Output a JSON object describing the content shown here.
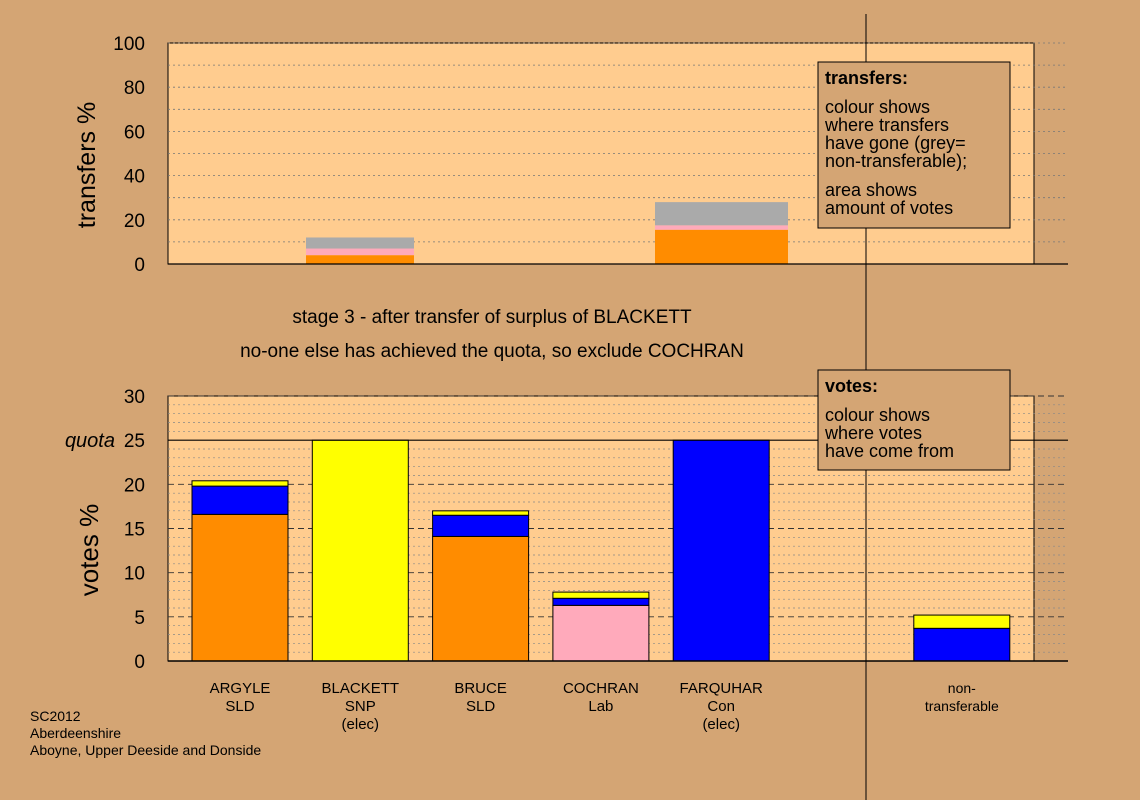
{
  "colors": {
    "background": "#d4a574",
    "plot_background": "#ffcc8f",
    "SLD": "#ff8c00",
    "SNP": "#ffff00",
    "Con": "#0000ff",
    "Lab": "#ffaabb",
    "non_transferable": "#aaaaaa"
  },
  "headline": {
    "line1": "stage 3 - after transfer of surplus of BLACKETT",
    "line2": "no-one else has achieved the quota, so exclude COCHRAN"
  },
  "footer": {
    "line1": "SC2012",
    "line2": "Aberdeenshire",
    "line3": "Aboyne, Upper Deeside and Donside"
  },
  "transfers_box": {
    "title": "transfers:",
    "line1": "colour shows",
    "line2": "where transfers",
    "line3": "have gone (grey=",
    "line4": "non-transferable);",
    "line5": "area shows",
    "line6": "amount of votes"
  },
  "votes_box": {
    "title": "votes:",
    "line1": "colour shows",
    "line2": "where votes",
    "line3": "have come from"
  },
  "quota_label": "quota",
  "chart_data": [
    {
      "type": "bar",
      "ylabel": "transfers %",
      "ylim": [
        0,
        100
      ],
      "yticks": [
        0,
        20,
        40,
        60,
        80,
        100
      ],
      "grid": true,
      "bars": [
        {
          "segments": [
            {
              "color": "SLD",
              "value": 4
            },
            {
              "color": "Lab",
              "value": 3
            },
            {
              "color": "non_transferable",
              "value": 5
            }
          ]
        },
        {
          "segments": [
            {
              "color": "SLD",
              "value": 15.5
            },
            {
              "color": "Lab",
              "value": 2
            },
            {
              "color": "non_transferable",
              "value": 10.5
            }
          ]
        }
      ]
    },
    {
      "type": "bar",
      "ylabel": "votes %",
      "ylim": [
        0,
        30
      ],
      "yticks": [
        0,
        5,
        10,
        15,
        20,
        25,
        30
      ],
      "quota": 25,
      "grid": true,
      "categories": [
        {
          "name": "ARGYLE",
          "party": "SLD",
          "extra": ""
        },
        {
          "name": "BLACKETT",
          "party": "SNP",
          "extra": "(elec)"
        },
        {
          "name": "BRUCE",
          "party": "SLD",
          "extra": ""
        },
        {
          "name": "COCHRAN",
          "party": "Lab",
          "extra": ""
        },
        {
          "name": "FARQUHAR",
          "party": "Con",
          "extra": "(elec)"
        },
        {
          "name": "",
          "party": "",
          "extra": ""
        },
        {
          "name": "non-",
          "party": "transferable",
          "extra": ""
        }
      ],
      "stacks": [
        [
          {
            "color": "SLD",
            "value": 16.6
          },
          {
            "color": "Con",
            "value": 3.2
          },
          {
            "color": "SNP",
            "value": 0.6
          }
        ],
        [
          {
            "color": "SNP",
            "value": 25
          }
        ],
        [
          {
            "color": "SLD",
            "value": 14.1
          },
          {
            "color": "Con",
            "value": 2.4
          },
          {
            "color": "SNP",
            "value": 0.5
          }
        ],
        [
          {
            "color": "Lab",
            "value": 6.3
          },
          {
            "color": "Con",
            "value": 0.8
          },
          {
            "color": "SNP",
            "value": 0.7
          }
        ],
        [
          {
            "color": "Con",
            "value": 25
          }
        ],
        [],
        [
          {
            "color": "Con",
            "value": 3.7
          },
          {
            "color": "SNP",
            "value": 1.5
          }
        ]
      ]
    }
  ]
}
